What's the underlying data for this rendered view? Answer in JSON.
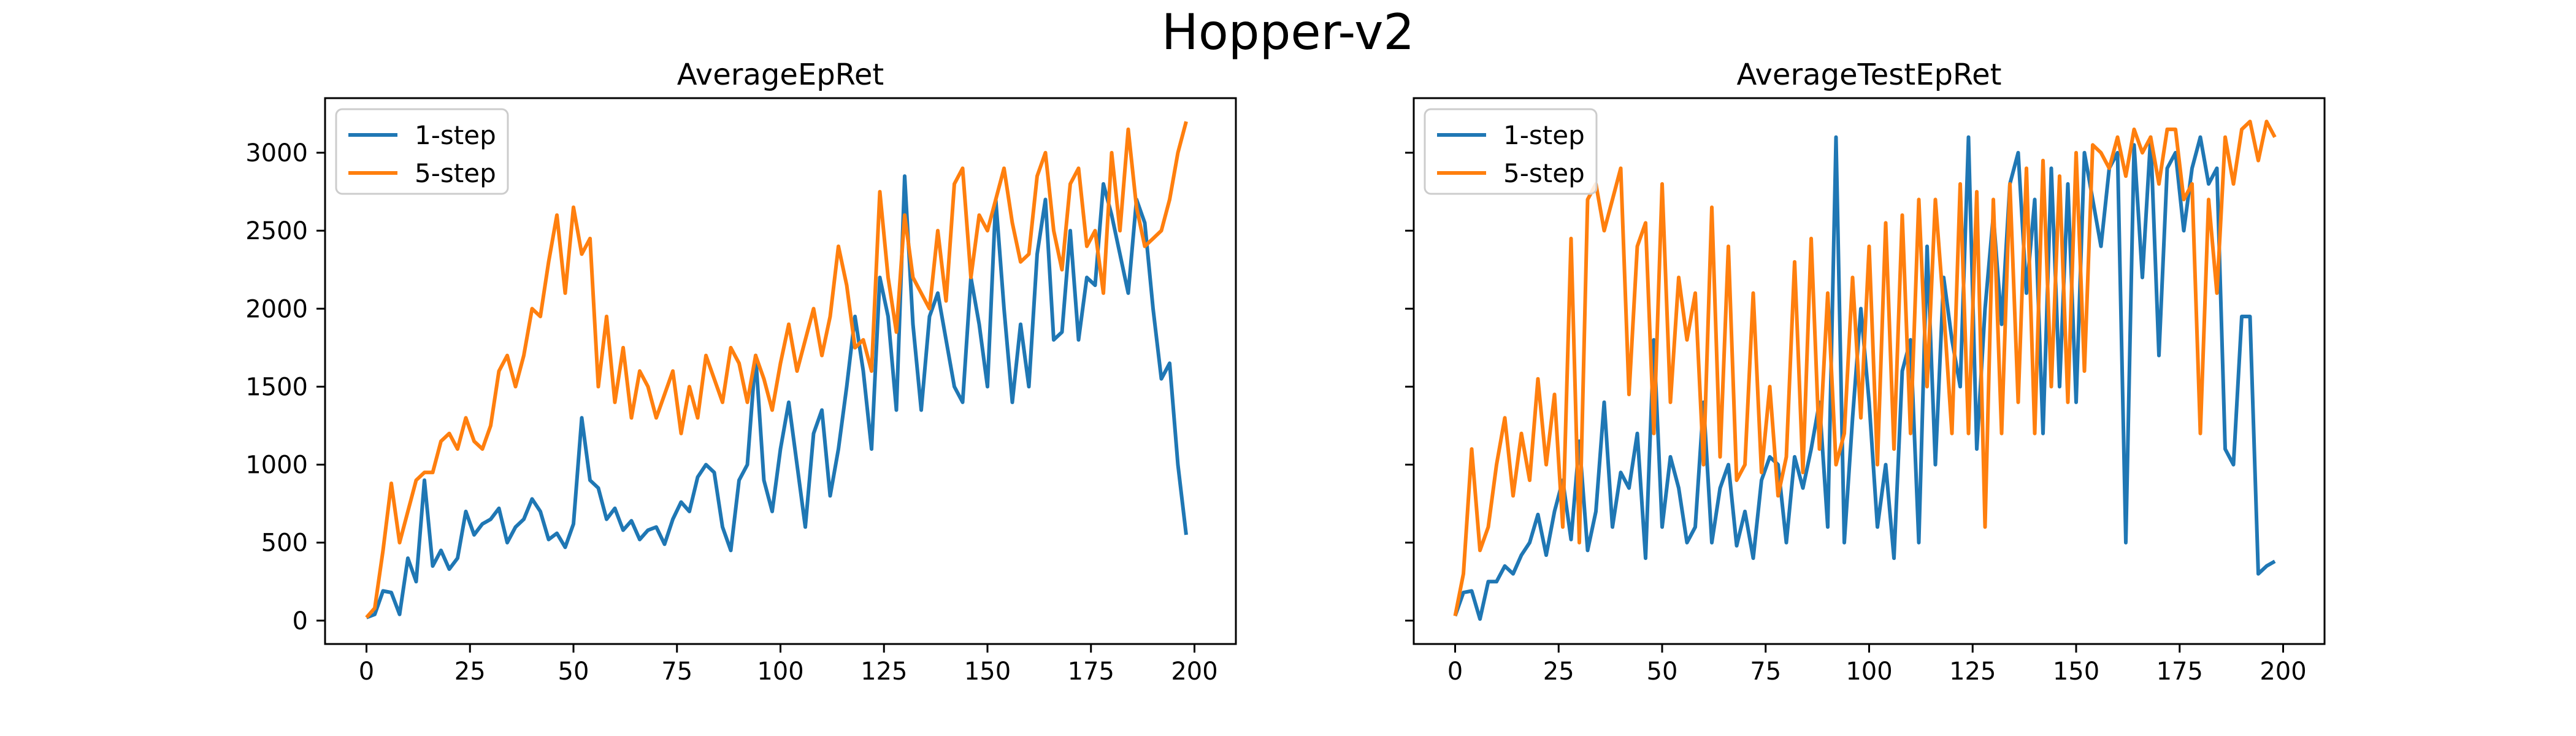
{
  "figure": {
    "suptitle": "Hopper-v2"
  },
  "chart_data": [
    {
      "type": "line",
      "title": "AverageEpRet",
      "xlabel": "",
      "ylabel": "",
      "xlim": [
        -10,
        210
      ],
      "ylim": [
        -150,
        3350
      ],
      "xticks": [
        0,
        25,
        50,
        75,
        100,
        125,
        150,
        175,
        200
      ],
      "yticks": [
        0,
        500,
        1000,
        1500,
        2000,
        2500,
        3000
      ],
      "grid": false,
      "legend": "top-left",
      "series": [
        {
          "name": "1-step",
          "color": "#1f77b4",
          "x": [
            0,
            2,
            4,
            6,
            8,
            10,
            12,
            14,
            16,
            18,
            20,
            22,
            24,
            26,
            28,
            30,
            32,
            34,
            36,
            38,
            40,
            42,
            44,
            46,
            48,
            50,
            52,
            54,
            56,
            58,
            60,
            62,
            64,
            66,
            68,
            70,
            72,
            74,
            76,
            78,
            80,
            82,
            84,
            86,
            88,
            90,
            92,
            94,
            96,
            98,
            100,
            102,
            104,
            106,
            108,
            110,
            112,
            114,
            116,
            118,
            120,
            122,
            124,
            126,
            128,
            130,
            132,
            134,
            136,
            138,
            140,
            142,
            144,
            146,
            148,
            150,
            152,
            154,
            156,
            158,
            160,
            162,
            164,
            166,
            168,
            170,
            172,
            174,
            176,
            178,
            180,
            182,
            184,
            186,
            188,
            190,
            192,
            194,
            196,
            198
          ],
          "y": [
            20,
            40,
            190,
            180,
            40,
            400,
            250,
            900,
            350,
            450,
            330,
            400,
            700,
            550,
            620,
            650,
            720,
            500,
            600,
            650,
            780,
            700,
            520,
            560,
            470,
            620,
            1300,
            900,
            850,
            650,
            720,
            580,
            640,
            520,
            580,
            600,
            490,
            650,
            760,
            700,
            920,
            1000,
            950,
            600,
            450,
            900,
            1000,
            1700,
            900,
            700,
            1100,
            1400,
            1000,
            600,
            1200,
            1350,
            800,
            1100,
            1500,
            1950,
            1600,
            1100,
            2200,
            1950,
            1350,
            2850,
            1900,
            1350,
            1950,
            2100,
            1800,
            1500,
            1400,
            2200,
            1900,
            1500,
            2700,
            2000,
            1400,
            1900,
            1500,
            2350,
            2700,
            1800,
            1850,
            2500,
            1800,
            2200,
            2150,
            2800,
            2600,
            2350,
            2100,
            2700,
            2550,
            2000,
            1550,
            1650,
            1000,
            550
          ]
        },
        {
          "name": "5-step",
          "color": "#ff7f0e",
          "x": [
            0,
            2,
            4,
            6,
            8,
            10,
            12,
            14,
            16,
            18,
            20,
            22,
            24,
            26,
            28,
            30,
            32,
            34,
            36,
            38,
            40,
            42,
            44,
            46,
            48,
            50,
            52,
            54,
            56,
            58,
            60,
            62,
            64,
            66,
            68,
            70,
            72,
            74,
            76,
            78,
            80,
            82,
            84,
            86,
            88,
            90,
            92,
            94,
            96,
            98,
            100,
            102,
            104,
            106,
            108,
            110,
            112,
            114,
            116,
            118,
            120,
            122,
            124,
            126,
            128,
            130,
            132,
            134,
            136,
            138,
            140,
            142,
            144,
            146,
            148,
            150,
            152,
            154,
            156,
            158,
            160,
            162,
            164,
            166,
            168,
            170,
            172,
            174,
            176,
            178,
            180,
            182,
            184,
            186,
            188,
            190,
            192,
            194,
            196,
            198
          ],
          "y": [
            20,
            80,
            450,
            880,
            500,
            700,
            900,
            950,
            950,
            1150,
            1200,
            1100,
            1300,
            1150,
            1100,
            1250,
            1600,
            1700,
            1500,
            1700,
            2000,
            1950,
            2300,
            2600,
            2100,
            2650,
            2350,
            2450,
            1500,
            1950,
            1400,
            1750,
            1300,
            1600,
            1500,
            1300,
            1450,
            1600,
            1200,
            1500,
            1300,
            1700,
            1550,
            1400,
            1750,
            1650,
            1400,
            1700,
            1550,
            1350,
            1650,
            1900,
            1600,
            1800,
            2000,
            1700,
            1950,
            2400,
            2150,
            1750,
            1800,
            1600,
            2750,
            2200,
            1850,
            2600,
            2200,
            2100,
            2000,
            2500,
            2050,
            2800,
            2900,
            2200,
            2600,
            2500,
            2700,
            2900,
            2550,
            2300,
            2350,
            2850,
            3000,
            2500,
            2250,
            2800,
            2900,
            2400,
            2500,
            2100,
            3000,
            2500,
            3150,
            2650,
            2400,
            2450,
            2500,
            2700,
            3000,
            3200
          ]
        }
      ]
    },
    {
      "type": "line",
      "title": "AverageTestEpRet",
      "xlabel": "",
      "ylabel": "",
      "xlim": [
        -10,
        210
      ],
      "ylim": [
        -150,
        3350
      ],
      "xticks": [
        0,
        25,
        50,
        75,
        100,
        125,
        150,
        175,
        200
      ],
      "yticks": [
        0,
        500,
        1000,
        1500,
        2000,
        2500,
        3000
      ],
      "grid": false,
      "legend": "top-left",
      "series": [
        {
          "name": "1-step",
          "color": "#1f77b4",
          "x": [
            0,
            2,
            4,
            6,
            8,
            10,
            12,
            14,
            16,
            18,
            20,
            22,
            24,
            26,
            28,
            30,
            32,
            34,
            36,
            38,
            40,
            42,
            44,
            46,
            48,
            50,
            52,
            54,
            56,
            58,
            60,
            62,
            64,
            66,
            68,
            70,
            72,
            74,
            76,
            78,
            80,
            82,
            84,
            86,
            88,
            90,
            92,
            94,
            96,
            98,
            100,
            102,
            104,
            106,
            108,
            110,
            112,
            114,
            116,
            118,
            120,
            122,
            124,
            126,
            128,
            130,
            132,
            134,
            136,
            138,
            140,
            142,
            144,
            146,
            148,
            150,
            152,
            154,
            156,
            158,
            160,
            162,
            164,
            166,
            168,
            170,
            172,
            174,
            176,
            178,
            180,
            182,
            184,
            186,
            188,
            190,
            192,
            194,
            196,
            198
          ],
          "y": [
            30,
            180,
            190,
            10,
            250,
            250,
            350,
            300,
            420,
            500,
            680,
            420,
            700,
            900,
            520,
            1150,
            450,
            700,
            1400,
            600,
            950,
            850,
            1200,
            400,
            1800,
            600,
            1050,
            850,
            500,
            600,
            1400,
            500,
            850,
            1000,
            480,
            700,
            400,
            900,
            1050,
            1000,
            500,
            1050,
            850,
            1100,
            1400,
            600,
            3100,
            500,
            1300,
            2000,
            1400,
            600,
            1000,
            400,
            1600,
            1800,
            500,
            2400,
            1000,
            2200,
            1800,
            1500,
            3100,
            1100,
            2000,
            2600,
            1900,
            2800,
            3000,
            2100,
            2700,
            1200,
            2900,
            1500,
            2800,
            1400,
            3000,
            2700,
            2400,
            2900,
            3000,
            500,
            3050,
            2200,
            3100,
            1700,
            2900,
            3000,
            2500,
            2900,
            3100,
            2800,
            2900,
            1100,
            1000,
            1950,
            1950,
            300,
            350,
            380
          ]
        },
        {
          "name": "5-step",
          "color": "#ff7f0e",
          "x": [
            0,
            2,
            4,
            6,
            8,
            10,
            12,
            14,
            16,
            18,
            20,
            22,
            24,
            26,
            28,
            30,
            32,
            34,
            36,
            38,
            40,
            42,
            44,
            46,
            48,
            50,
            52,
            54,
            56,
            58,
            60,
            62,
            64,
            66,
            68,
            70,
            72,
            74,
            76,
            78,
            80,
            82,
            84,
            86,
            88,
            90,
            92,
            94,
            96,
            98,
            100,
            102,
            104,
            106,
            108,
            110,
            112,
            114,
            116,
            118,
            120,
            122,
            124,
            126,
            128,
            130,
            132,
            134,
            136,
            138,
            140,
            142,
            144,
            146,
            148,
            150,
            152,
            154,
            156,
            158,
            160,
            162,
            164,
            166,
            168,
            170,
            172,
            174,
            176,
            178,
            180,
            182,
            184,
            186,
            188,
            190,
            192,
            194,
            196,
            198
          ],
          "y": [
            30,
            300,
            1100,
            450,
            600,
            1000,
            1300,
            800,
            1200,
            900,
            1550,
            1000,
            1450,
            600,
            2450,
            500,
            2700,
            2800,
            2500,
            2700,
            2900,
            1450,
            2400,
            2550,
            1200,
            2800,
            1400,
            2200,
            1800,
            2100,
            1000,
            2650,
            1050,
            2400,
            900,
            1000,
            2100,
            950,
            1500,
            800,
            1050,
            2300,
            950,
            2450,
            1100,
            2100,
            1000,
            1200,
            2200,
            1300,
            2400,
            1000,
            2550,
            1100,
            2600,
            1200,
            2700,
            1500,
            2700,
            2000,
            1200,
            2800,
            1200,
            2750,
            600,
            2700,
            1200,
            2800,
            1400,
            2900,
            1200,
            2950,
            1500,
            2850,
            1400,
            3000,
            1600,
            3050,
            3000,
            2900,
            3100,
            2850,
            3150,
            3000,
            3100,
            2800,
            3150,
            3150,
            2700,
            2800,
            1200,
            2700,
            2100,
            3100,
            2800,
            3150,
            3200,
            2950,
            3200,
            3100
          ]
        }
      ]
    }
  ]
}
